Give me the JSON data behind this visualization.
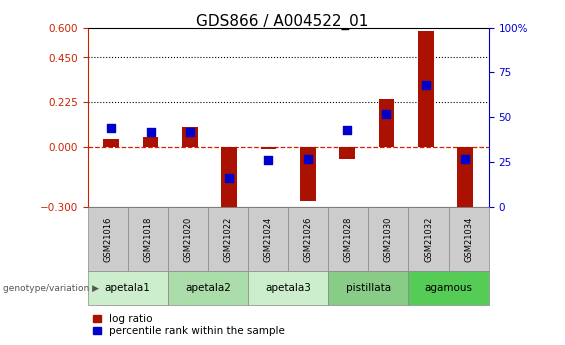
{
  "title": "GDS866 / A004522_01",
  "samples": [
    "GSM21016",
    "GSM21018",
    "GSM21020",
    "GSM21022",
    "GSM21024",
    "GSM21026",
    "GSM21028",
    "GSM21030",
    "GSM21032",
    "GSM21034"
  ],
  "log_ratio": [
    0.04,
    0.05,
    0.1,
    -0.32,
    -0.01,
    -0.27,
    -0.06,
    0.24,
    0.585,
    -0.3
  ],
  "percentile_rank": [
    44,
    42,
    42,
    16,
    26,
    27,
    43,
    52,
    68,
    27
  ],
  "ylim_left": [
    -0.3,
    0.6
  ],
  "ylim_right": [
    0,
    100
  ],
  "yticks_left": [
    -0.3,
    0,
    0.225,
    0.45,
    0.6
  ],
  "yticks_right": [
    0,
    25,
    50,
    75,
    100
  ],
  "hlines": [
    0.225,
    0.45
  ],
  "bar_color": "#aa1100",
  "dot_color": "#0000cc",
  "zero_line_color": "#cc2200",
  "groups": [
    {
      "name": "apetala1",
      "cols": [
        0,
        1
      ],
      "color": "#cceecc"
    },
    {
      "name": "apetala2",
      "cols": [
        2,
        3
      ],
      "color": "#aaddaa"
    },
    {
      "name": "apetala3",
      "cols": [
        4,
        5
      ],
      "color": "#cceecc"
    },
    {
      "name": "pistillata",
      "cols": [
        6,
        7
      ],
      "color": "#88cc88"
    },
    {
      "name": "agamous",
      "cols": [
        8,
        9
      ],
      "color": "#55cc55"
    }
  ],
  "sample_row_color": "#cccccc",
  "left_axis_color": "#cc2200",
  "right_axis_color": "#0000cc",
  "bar_width": 0.4,
  "dot_size": 40,
  "figsize": [
    5.65,
    3.45
  ],
  "dpi": 100,
  "title_fontsize": 11,
  "tick_fontsize": 7.5,
  "legend_fontsize": 7.5
}
